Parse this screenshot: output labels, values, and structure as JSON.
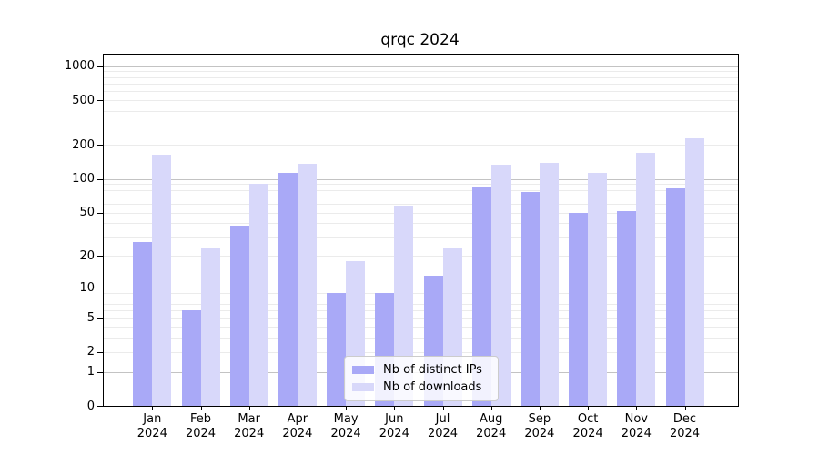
{
  "chart_data": {
    "type": "bar",
    "title": "qrqc 2024",
    "categories": [
      "Jan",
      "Feb",
      "Mar",
      "Apr",
      "May",
      "Jun",
      "Jul",
      "Aug",
      "Sep",
      "Oct",
      "Nov",
      "Dec"
    ],
    "category_year": "2024",
    "xlabel": "",
    "ylabel": "",
    "yscale": "log1p",
    "ylim": [
      0,
      1265
    ],
    "yticks": [
      0,
      1,
      2,
      5,
      10,
      20,
      50,
      100,
      200,
      500,
      1000
    ],
    "grid": "horizontal, major and minor",
    "legend_position": "lower center",
    "series": [
      {
        "name": "Nb of distinct IPs",
        "color": "#a9a9f7",
        "values": [
          27,
          6,
          38,
          113,
          9,
          9,
          13,
          86,
          76,
          50,
          51,
          82
        ]
      },
      {
        "name": "Nb of downloads",
        "color": "#d8d8fa",
        "values": [
          164,
          24,
          90,
          137,
          18,
          58,
          24,
          135,
          139,
          114,
          171,
          230
        ]
      }
    ]
  }
}
